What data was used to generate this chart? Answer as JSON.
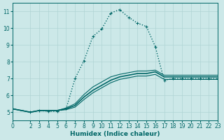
{
  "xlabel": "Humidex (Indice chaleur)",
  "ylabel": "",
  "bg_color": "#cce8e8",
  "line_color": "#006666",
  "grid_color": "#b0d4d4",
  "xlim": [
    0,
    23
  ],
  "ylim": [
    4.5,
    11.5
  ],
  "yticks": [
    5,
    6,
    7,
    8,
    9,
    10,
    11
  ],
  "xticks": [
    0,
    2,
    3,
    4,
    5,
    6,
    7,
    8,
    9,
    10,
    11,
    12,
    13,
    14,
    15,
    16,
    17,
    18,
    19,
    20,
    21,
    22,
    23
  ],
  "series": [
    {
      "x": [
        0,
        2,
        3,
        4,
        5,
        6,
        7,
        8,
        9,
        10,
        11,
        12,
        13,
        14,
        15,
        16,
        17,
        18,
        19,
        20,
        21,
        22,
        23
      ],
      "y": [
        5.2,
        5.0,
        5.1,
        5.1,
        5.1,
        5.15,
        5.3,
        5.75,
        6.15,
        6.45,
        6.75,
        6.95,
        7.05,
        7.15,
        7.15,
        7.25,
        6.95,
        6.95,
        6.95,
        6.95,
        6.95,
        6.95,
        6.95
      ],
      "style": "solid",
      "lw": 0.8
    },
    {
      "x": [
        0,
        2,
        3,
        4,
        5,
        6,
        7,
        8,
        9,
        10,
        11,
        12,
        13,
        14,
        15,
        16,
        17,
        18,
        19,
        20,
        21,
        22,
        23
      ],
      "y": [
        5.2,
        5.0,
        5.1,
        5.1,
        5.1,
        5.2,
        5.4,
        5.9,
        6.3,
        6.6,
        6.9,
        7.1,
        7.2,
        7.3,
        7.3,
        7.4,
        7.1,
        7.1,
        7.1,
        7.1,
        7.1,
        7.1,
        7.1
      ],
      "style": "solid",
      "lw": 1.2
    },
    {
      "x": [
        0,
        2,
        3,
        4,
        5,
        6,
        7,
        8,
        9,
        10,
        11,
        12,
        13,
        14,
        15,
        16,
        17,
        18,
        19,
        20,
        21,
        22,
        23
      ],
      "y": [
        5.2,
        5.0,
        5.1,
        5.1,
        5.1,
        5.25,
        5.5,
        6.05,
        6.5,
        6.8,
        7.1,
        7.25,
        7.35,
        7.45,
        7.45,
        7.5,
        7.2,
        7.2,
        7.2,
        7.2,
        7.2,
        7.2,
        7.2
      ],
      "style": "solid",
      "lw": 0.8
    },
    {
      "x": [
        0,
        2,
        3,
        4,
        5,
        6,
        7,
        8,
        9,
        10,
        11,
        12,
        13,
        14,
        15,
        16,
        17,
        18,
        19,
        20,
        21,
        22,
        23
      ],
      "y": [
        5.2,
        5.0,
        5.1,
        5.05,
        5.05,
        5.2,
        7.0,
        8.05,
        9.5,
        9.95,
        10.9,
        11.1,
        10.65,
        10.3,
        10.1,
        8.9,
        6.9,
        7.0,
        7.0,
        7.0,
        7.0,
        7.0,
        7.0
      ],
      "style": "dotted_marker",
      "lw": 1.0
    }
  ]
}
